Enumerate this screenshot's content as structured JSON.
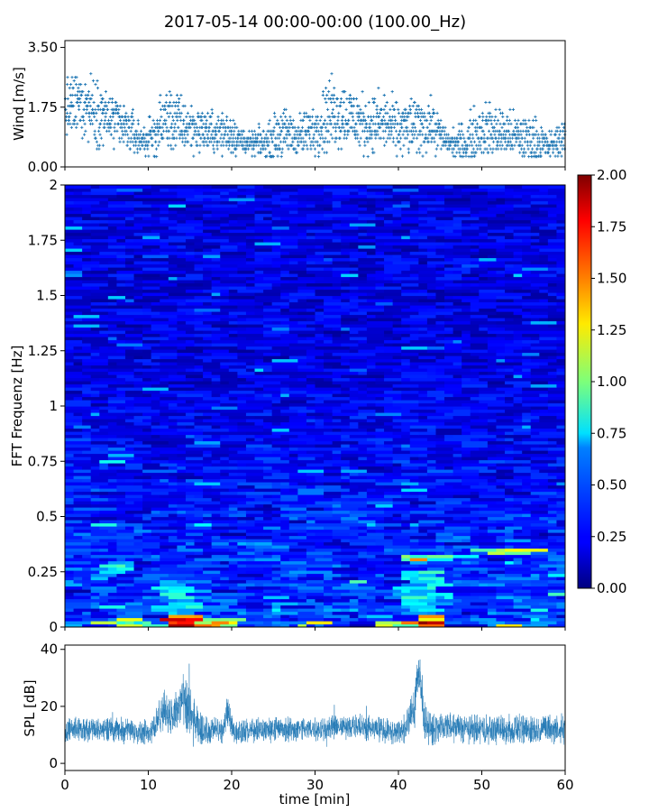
{
  "figure": {
    "title": "2017-05-14 00:00-00:00 (100.00_Hz)"
  },
  "chart_data": [
    {
      "type": "scatter",
      "panel": "wind",
      "ylabel": "Wind [m/s]",
      "ylim": [
        0,
        3.7
      ],
      "yticks": [
        0,
        1.75,
        3.5
      ],
      "ytick_labels": [
        "0.00",
        "1.75",
        "3.50"
      ],
      "xlim": [
        0,
        60
      ],
      "xticks": [
        0,
        10,
        20,
        30,
        40,
        50,
        60
      ],
      "color": "#1f77b4",
      "marker": "+",
      "wind_envelope": {
        "time_min": [
          0,
          2,
          4,
          6,
          8,
          9,
          10,
          11,
          12,
          14,
          16,
          18,
          20,
          21,
          22,
          24,
          26,
          28,
          30,
          32,
          34,
          36,
          38,
          40,
          42,
          44,
          46,
          48,
          50,
          52,
          54,
          56,
          58,
          60
        ],
        "median": [
          1.6,
          1.9,
          1.6,
          1.3,
          1.0,
          0.8,
          0.8,
          1.0,
          1.4,
          1.2,
          1.1,
          1.0,
          1.0,
          0.8,
          0.7,
          0.7,
          1.0,
          0.9,
          1.1,
          1.6,
          1.5,
          1.2,
          1.3,
          1.1,
          1.2,
          1.2,
          0.7,
          0.7,
          1.1,
          1.0,
          0.9,
          0.8,
          0.6,
          0.9
        ],
        "spread": [
          0.9,
          1.1,
          1.0,
          0.8,
          0.7,
          0.5,
          0.5,
          0.8,
          1.0,
          0.9,
          0.7,
          0.6,
          0.7,
          0.4,
          0.3,
          0.5,
          0.8,
          0.6,
          0.8,
          1.2,
          1.0,
          0.9,
          0.9,
          0.8,
          0.9,
          0.8,
          0.3,
          0.7,
          0.9,
          0.8,
          0.7,
          0.8,
          0.4,
          0.6
        ]
      }
    },
    {
      "type": "heatmap",
      "panel": "spectrogram",
      "ylabel": "FFT Frequenz [Hz]",
      "ylim": [
        0,
        2
      ],
      "yticks": [
        0,
        0.25,
        0.5,
        0.75,
        1,
        1.25,
        1.5,
        1.75,
        2
      ],
      "ytick_labels": [
        "0",
        "0.25",
        "0.5",
        "0.75",
        "1",
        "1.25",
        "1.5",
        "1.75",
        "2"
      ],
      "xlim": [
        0,
        60
      ],
      "colormap": "jet",
      "clim": [
        0,
        2
      ],
      "colorbar_ticks": [
        "0.00",
        "0.25",
        "0.50",
        "0.75",
        "1.00",
        "1.25",
        "1.50",
        "1.75",
        "2.00"
      ],
      "hotspots": [
        {
          "t0": 11.5,
          "t1": 16.5,
          "f0": 0.0,
          "f1": 0.06,
          "level": 2.0
        },
        {
          "t0": 16.5,
          "t1": 21.0,
          "f0": 0.0,
          "f1": 0.04,
          "level": 1.7
        },
        {
          "t0": 6.0,
          "t1": 11.0,
          "f0": 0.0,
          "f1": 0.03,
          "level": 1.2
        },
        {
          "t0": 41.0,
          "t1": 46.0,
          "f0": 0.0,
          "f1": 0.06,
          "level": 2.0
        },
        {
          "t0": 40.0,
          "t1": 44.0,
          "f0": 0.3,
          "f1": 0.33,
          "level": 1.5
        },
        {
          "t0": 44.0,
          "t1": 50.0,
          "f0": 0.31,
          "f1": 0.33,
          "level": 1.1
        },
        {
          "t0": 50.0,
          "t1": 57.0,
          "f0": 0.33,
          "f1": 0.35,
          "level": 1.3
        },
        {
          "t0": 5.0,
          "t1": 8.0,
          "f0": 0.25,
          "f1": 0.3,
          "level": 0.9
        },
        {
          "t0": 40.0,
          "t1": 45.0,
          "f0": 0.06,
          "f1": 0.25,
          "level": 0.9
        },
        {
          "t0": 11.0,
          "t1": 16.0,
          "f0": 0.05,
          "f1": 0.22,
          "level": 0.85
        },
        {
          "t0": 52.0,
          "t1": 54.0,
          "f0": 0.0,
          "f1": 0.03,
          "level": 1.6
        }
      ]
    },
    {
      "type": "line",
      "panel": "spl",
      "ylabel": "SPL [dB]",
      "xlabel": "time [min]",
      "xlim": [
        0,
        60
      ],
      "xticks": [
        0,
        10,
        20,
        30,
        40,
        50,
        60
      ],
      "ylim": [
        -2.5,
        41.5
      ],
      "yticks": [
        0,
        20,
        40
      ],
      "ytick_labels": [
        "0",
        "20",
        "40"
      ],
      "color": "#1f77b4",
      "spl_envelope": {
        "time_min": [
          0,
          5,
          10,
          11,
          12,
          13,
          14,
          15,
          16,
          17,
          18,
          19,
          19.5,
          20,
          20.5,
          25,
          30,
          35,
          40,
          41,
          42,
          42.3,
          42.6,
          43,
          44,
          45,
          50,
          55,
          60
        ],
        "mean": [
          12,
          12,
          11,
          14,
          19,
          16,
          22,
          17,
          12,
          11,
          12,
          11,
          20,
          13,
          11,
          12,
          12,
          13,
          11,
          13,
          22,
          32,
          30,
          16,
          11,
          13,
          12,
          12,
          12
        ],
        "spread": [
          5,
          5,
          5,
          7,
          8,
          8,
          12,
          12,
          8,
          6,
          5,
          5,
          6,
          5,
          5,
          5,
          5,
          5,
          5,
          6,
          10,
          10,
          10,
          8,
          6,
          6,
          6,
          6,
          6
        ]
      }
    }
  ]
}
